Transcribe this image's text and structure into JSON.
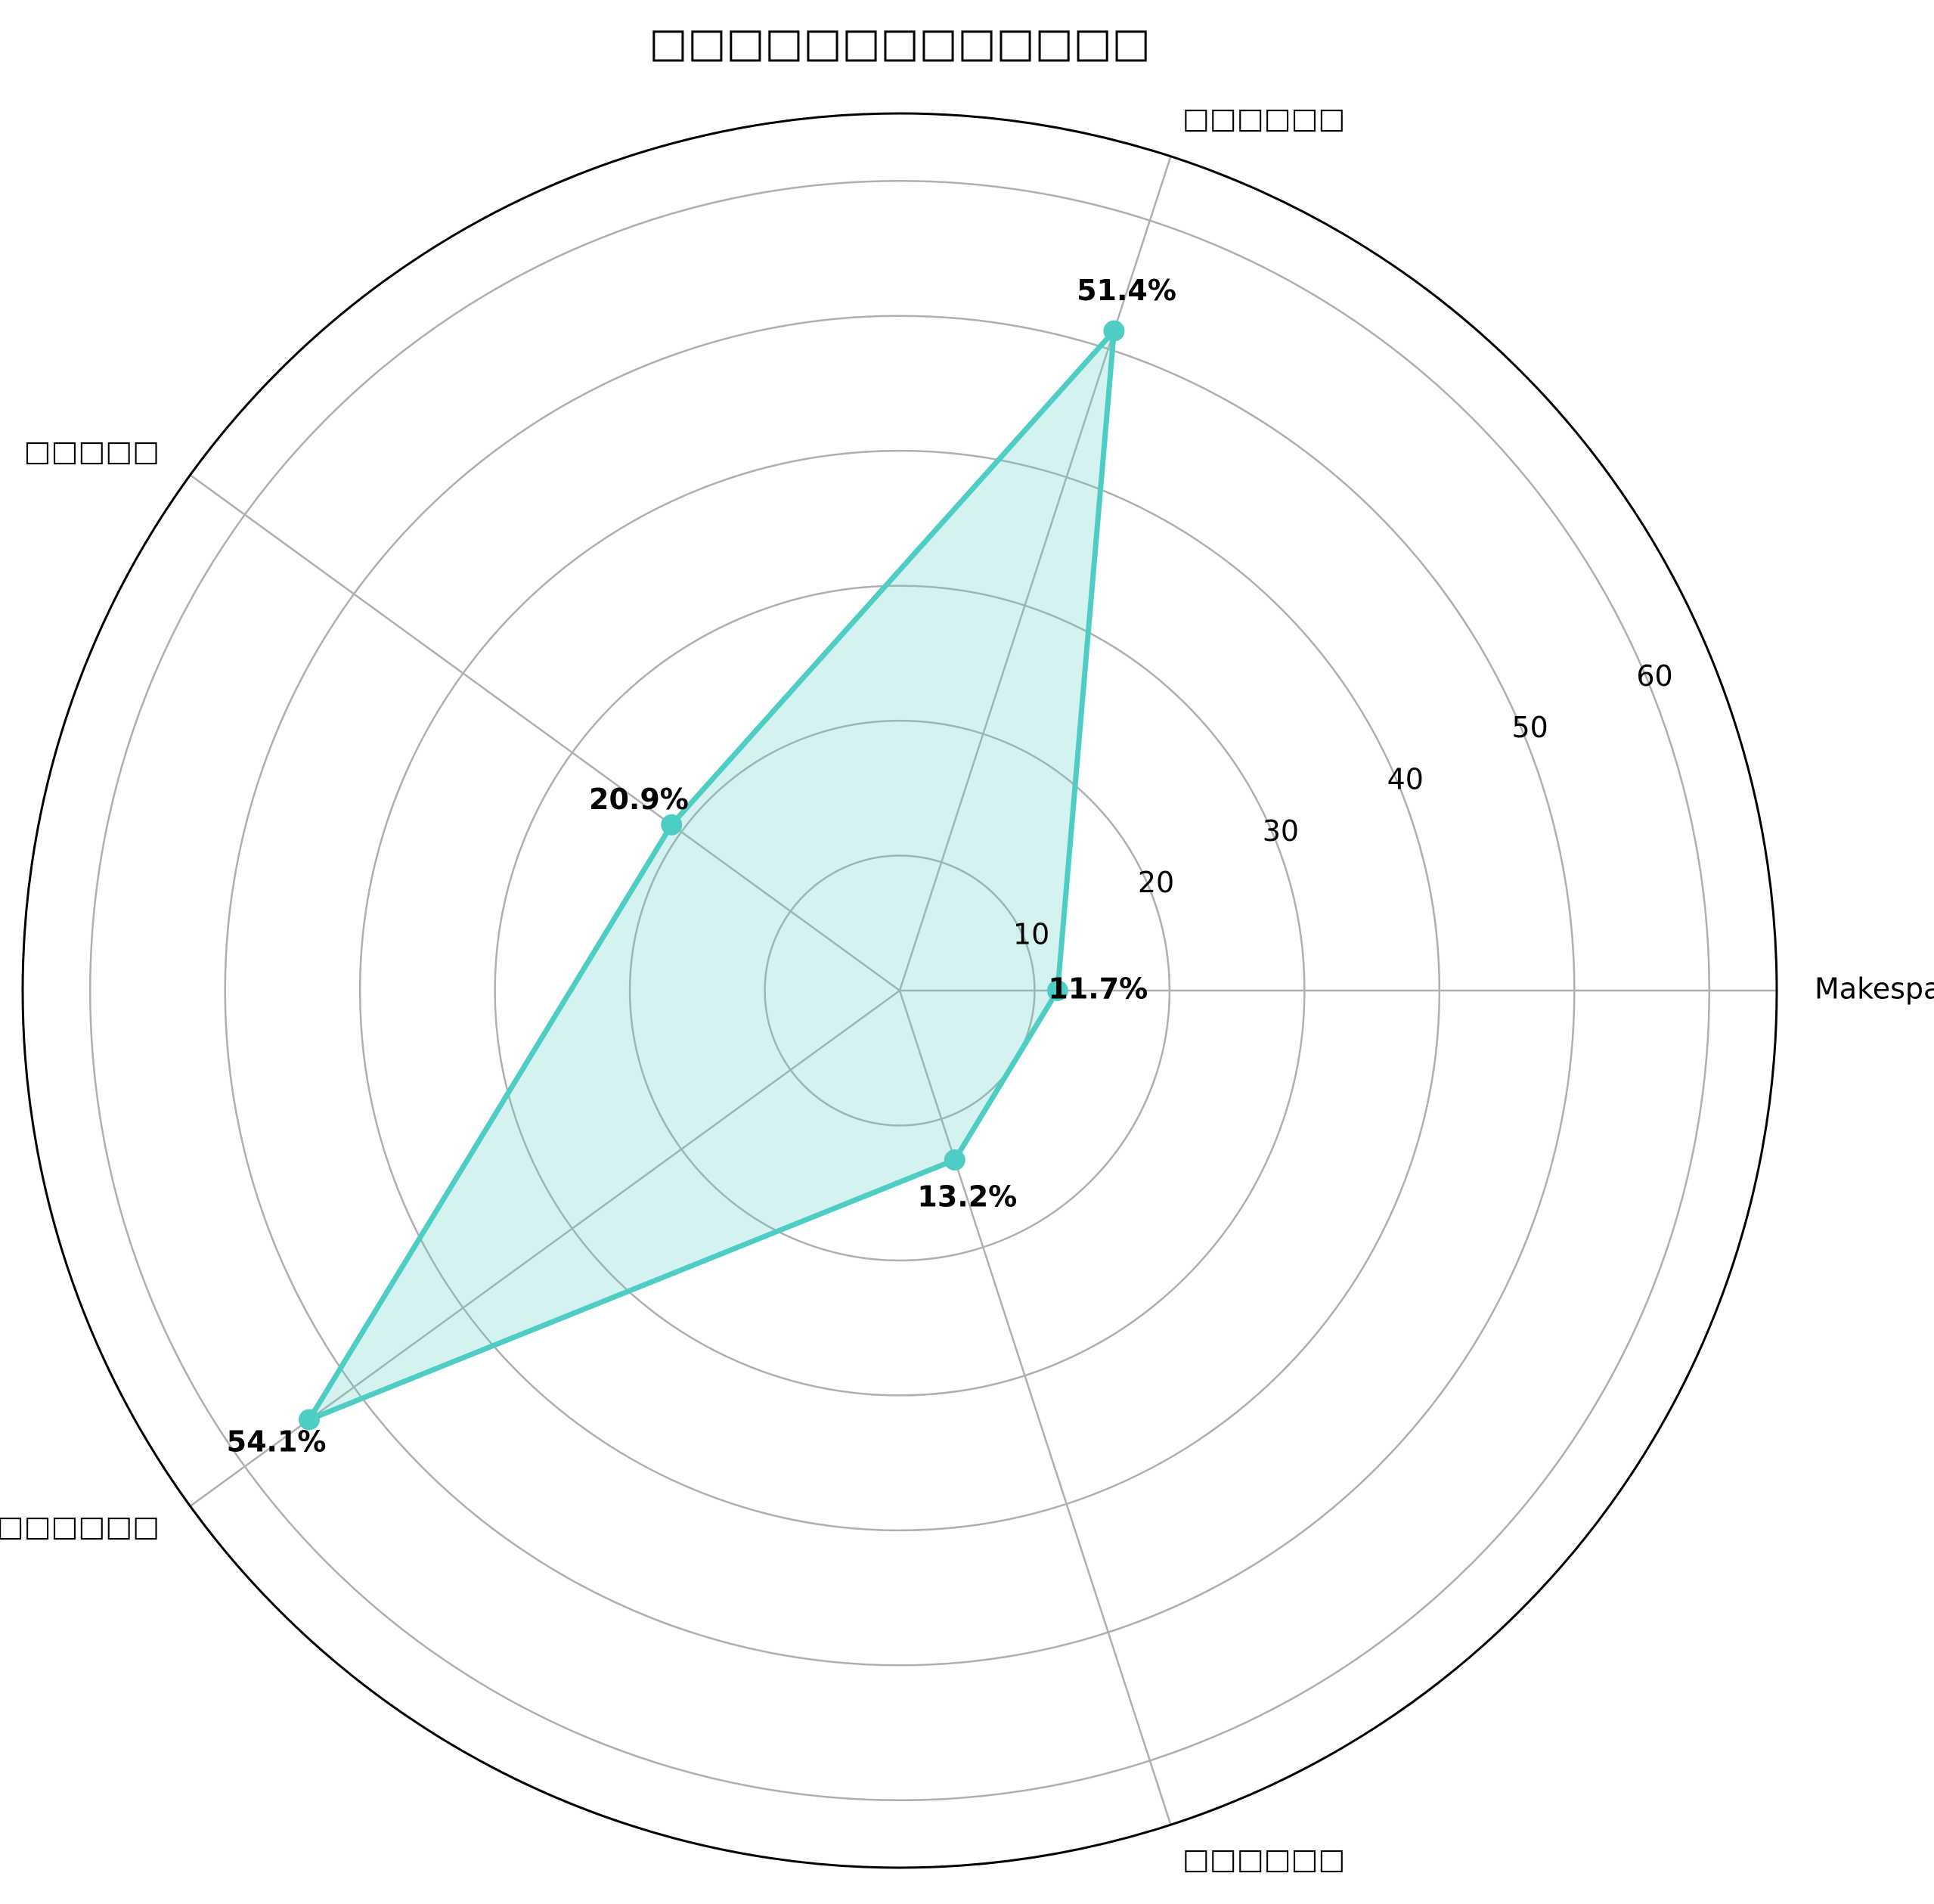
{
  "chart_data": {
    "type": "radar",
    "title": "",
    "categories": [
      "Makespan□□",
      "□□□□□□",
      "□□□□□",
      "□□□□□□□",
      "□□□□□□"
    ],
    "values": [
      11.7,
      51.4,
      20.9,
      54.1,
      13.2
    ],
    "data_labels": [
      "11.7%",
      "51.4%",
      "20.9%",
      "54.1%",
      "13.2%"
    ],
    "radial_ticks": [
      10,
      20,
      30,
      40,
      50,
      60
    ],
    "rlim": [
      0,
      65
    ],
    "grid": true,
    "colors": {
      "line": "#4ecdc4",
      "fill": "#4ecdc4",
      "grid": "#b0b0b0",
      "frame": "#000000"
    }
  },
  "title_text": "□□□□□□□□□□□□□"
}
